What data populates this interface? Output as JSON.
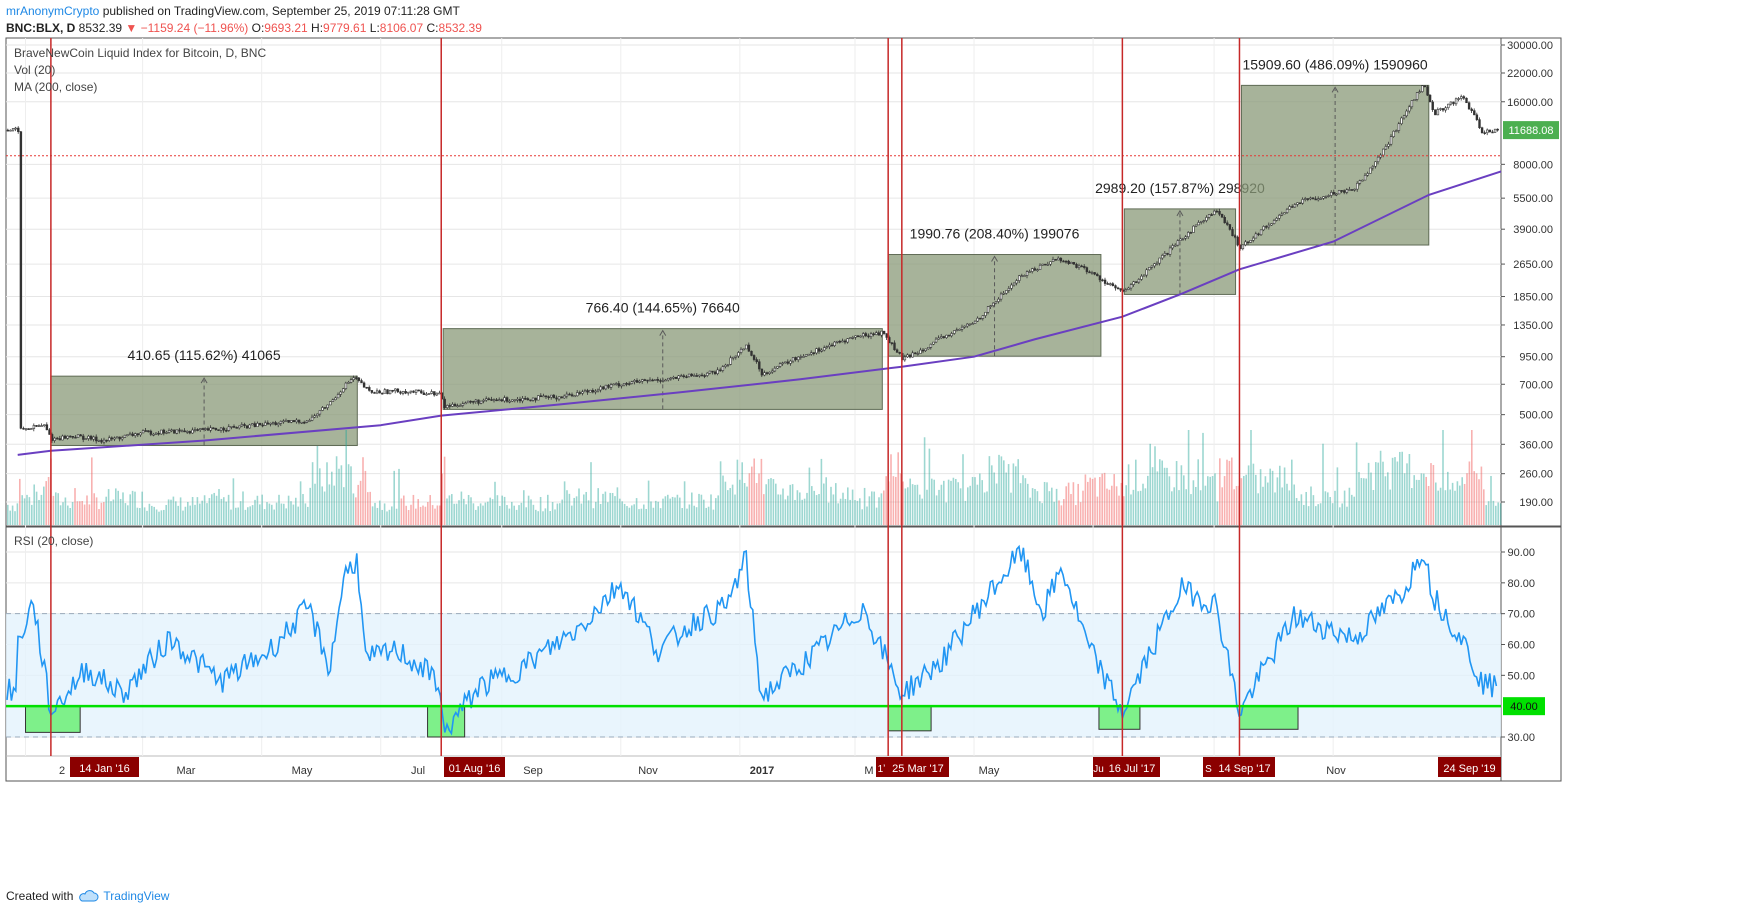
{
  "header": {
    "author": "mrAnonymCrypto",
    "published_text": "published on TradingView.com, September 25, 2019 07:11:28 GMT",
    "symbol": "BNC:BLX, D",
    "last": "8532.39",
    "change": "−1159.24 (−11.96%)",
    "open_label": "O:",
    "open": "9693.21",
    "high_label": "H:",
    "high": "9779.61",
    "low_label": "L:",
    "low": "8106.07",
    "close_label": "C:",
    "close": "8532.39"
  },
  "legends": {
    "price_title": "BraveNewCoin Liquid Index for Bitcoin, D, BNC",
    "vol": "Vol (20)",
    "ma": "MA (200, close)",
    "rsi": "RSI (20, close)"
  },
  "footer": {
    "created_with": "Created with",
    "brand": "TradingView"
  },
  "colors": {
    "up": "#26a69a",
    "down": "#ef5350",
    "ma": "#6a3fc1",
    "rsi": "#2196f3",
    "box": "#8a9a78",
    "vline": "#c62828",
    "green_line": "#00e000",
    "green_box": "#7ef08a",
    "badge": "#8b0000",
    "last_price": "#4caf50"
  },
  "chart_data": [
    {
      "type": "line",
      "title": "BraveNewCoin Liquid Index for Bitcoin, D, BNC",
      "scale": "log",
      "price_ticks": [
        "30000.00",
        "22000.00",
        "16000.00",
        "11688.08",
        "8000.00",
        "5500.00",
        "3900.00",
        "2650.00",
        "1850.00",
        "1350.00",
        "950.00",
        "700.00",
        "500.00",
        "360.00",
        "260.00",
        "190.00"
      ],
      "last_price_badge": "11688.08",
      "x_ticks": [
        "2",
        "Mar",
        "May",
        "Jul",
        "Sep",
        "Nov",
        "2017",
        "M",
        "May",
        "Jul",
        "S",
        "Nov"
      ],
      "price_path": [
        [
          "2015-12-28",
          420
        ],
        [
          "2016-01-10",
          445
        ],
        [
          "2016-01-14",
          382
        ],
        [
          "2016-01-25",
          395
        ],
        [
          "2016-02-10",
          375
        ],
        [
          "2016-03-01",
          410
        ],
        [
          "2016-04-01",
          420
        ],
        [
          "2016-05-01",
          448
        ],
        [
          "2016-05-25",
          470
        ],
        [
          "2016-06-05",
          575
        ],
        [
          "2016-06-12",
          690
        ],
        [
          "2016-06-17",
          755
        ],
        [
          "2016-06-25",
          640
        ],
        [
          "2016-07-10",
          650
        ],
        [
          "2016-07-31",
          630
        ],
        [
          "2016-08-02",
          545
        ],
        [
          "2016-08-15",
          575
        ],
        [
          "2016-09-01",
          590
        ],
        [
          "2016-10-01",
          610
        ],
        [
          "2016-11-01",
          705
        ],
        [
          "2016-12-01",
          755
        ],
        [
          "2016-12-20",
          800
        ],
        [
          "2017-01-04",
          1080
        ],
        [
          "2017-01-12",
          785
        ],
        [
          "2017-02-01",
          960
        ],
        [
          "2017-03-01",
          1190
        ],
        [
          "2017-03-15",
          1240
        ],
        [
          "2017-03-25",
          920
        ],
        [
          "2017-04-15",
          1180
        ],
        [
          "2017-05-01",
          1400
        ],
        [
          "2017-05-25",
          2350
        ],
        [
          "2017-06-12",
          2820
        ],
        [
          "2017-06-25",
          2550
        ],
        [
          "2017-07-16",
          1930
        ],
        [
          "2017-08-05",
          2850
        ],
        [
          "2017-08-25",
          4300
        ],
        [
          "2017-09-02",
          4800
        ],
        [
          "2017-09-14",
          3200
        ],
        [
          "2017-10-12",
          5200
        ],
        [
          "2017-11-12",
          6200
        ],
        [
          "2017-11-28",
          9800
        ],
        [
          "2017-12-08",
          14500
        ],
        [
          "2017-12-17",
          19500
        ],
        [
          "2017-12-22",
          14000
        ],
        [
          "2018-01-06",
          17000
        ],
        [
          "2018-01-16",
          11500
        ],
        [
          "2018-01-26",
          11688
        ]
      ],
      "ma200_path": [
        [
          "2015-12-28",
          320
        ],
        [
          "2016-01-14",
          335
        ],
        [
          "2016-04-01",
          375
        ],
        [
          "2016-07-01",
          445
        ],
        [
          "2016-08-01",
          495
        ],
        [
          "2016-10-01",
          560
        ],
        [
          "2016-12-01",
          640
        ],
        [
          "2017-02-01",
          740
        ],
        [
          "2017-03-25",
          850
        ],
        [
          "2017-05-01",
          950
        ],
        [
          "2017-06-01",
          1150
        ],
        [
          "2017-07-16",
          1480
        ],
        [
          "2017-08-15",
          1900
        ],
        [
          "2017-09-14",
          2500
        ],
        [
          "2017-11-01",
          3400
        ],
        [
          "2017-12-20",
          5700
        ],
        [
          "2018-01-26",
          7400
        ]
      ],
      "red_dotted_level": 8800,
      "measure_boxes": [
        {
          "label": "410.65 (115.62%) 41065",
          "start": "2016-01-14",
          "end": "2016-06-19",
          "low": 355.2,
          "high": 765.8
        },
        {
          "label": "766.40 (144.65%) 76640",
          "start": "2016-08-02",
          "end": "2017-03-15",
          "low": 529.9,
          "high": 1296.3
        },
        {
          "label": "1990.76 (208.40%) 199076",
          "start": "2017-03-18",
          "end": "2017-07-05",
          "low": 955.3,
          "high": 2946.1
        },
        {
          "label": "2989.20 (157.87%) 298920",
          "start": "2017-07-17",
          "end": "2017-09-12",
          "low": 1893.5,
          "high": 4882.7
        },
        {
          "label": "15909.60 (486.09%) 1590960",
          "start": "2017-09-15",
          "end": "2017-12-20",
          "low": 3273.0,
          "high": 19182.6
        }
      ],
      "vertical_markers": [
        "2016-01-14",
        "2016-08-01",
        "2017-03-18",
        "2017-03-25",
        "2017-07-16",
        "2017-09-14"
      ]
    },
    {
      "type": "line",
      "title": "RSI (20, close)",
      "ylim": [
        25,
        95
      ],
      "y_ticks": [
        "90.00",
        "80.00",
        "70.00",
        "60.00",
        "50.00",
        "40.00",
        "30.00"
      ],
      "band": [
        30,
        70
      ],
      "green_level": 40,
      "green_level_label": "40.00",
      "rsi_path": [
        [
          "2015-12-28",
          60
        ],
        [
          "2016-01-05",
          74
        ],
        [
          "2016-01-14",
          38
        ],
        [
          "2016-02-01",
          52
        ],
        [
          "2016-02-20",
          44
        ],
        [
          "2016-03-15",
          62
        ],
        [
          "2016-04-10",
          48
        ],
        [
          "2016-05-05",
          58
        ],
        [
          "2016-05-25",
          72
        ],
        [
          "2016-06-05",
          52
        ],
        [
          "2016-06-12",
          82
        ],
        [
          "2016-06-19",
          88
        ],
        [
          "2016-06-23",
          55
        ],
        [
          "2016-07-10",
          58
        ],
        [
          "2016-07-31",
          48
        ],
        [
          "2016-08-02",
          31
        ],
        [
          "2016-08-20",
          46
        ],
        [
          "2016-09-10",
          52
        ],
        [
          "2016-10-10",
          65
        ],
        [
          "2016-11-01",
          80
        ],
        [
          "2016-11-20",
          58
        ],
        [
          "2016-12-10",
          68
        ],
        [
          "2016-12-25",
          72
        ],
        [
          "2017-01-04",
          88
        ],
        [
          "2017-01-12",
          43
        ],
        [
          "2017-02-10",
          58
        ],
        [
          "2017-03-05",
          72
        ],
        [
          "2017-03-25",
          44
        ],
        [
          "2017-04-15",
          55
        ],
        [
          "2017-05-01",
          70
        ],
        [
          "2017-05-25",
          90
        ],
        [
          "2017-06-05",
          70
        ],
        [
          "2017-06-15",
          85
        ],
        [
          "2017-06-28",
          60
        ],
        [
          "2017-07-16",
          38
        ],
        [
          "2017-08-05",
          65
        ],
        [
          "2017-08-15",
          78
        ],
        [
          "2017-09-02",
          73
        ],
        [
          "2017-09-14",
          38
        ],
        [
          "2017-10-12",
          69
        ],
        [
          "2017-11-12",
          62
        ],
        [
          "2017-11-28",
          72
        ],
        [
          "2017-12-08",
          78
        ],
        [
          "2017-12-17",
          92
        ],
        [
          "2017-12-22",
          76
        ],
        [
          "2018-01-06",
          62
        ],
        [
          "2018-01-16",
          48
        ],
        [
          "2018-01-26",
          45
        ]
      ],
      "green_boxes": [
        {
          "start": "2016-01-01",
          "end": "2016-01-29",
          "low": 31.5
        },
        {
          "start": "2016-07-25",
          "end": "2016-08-13",
          "low": 30.0
        },
        {
          "start": "2017-03-18",
          "end": "2017-04-09",
          "low": 32.0
        },
        {
          "start": "2017-07-04",
          "end": "2017-07-25",
          "low": 32.5
        },
        {
          "start": "2017-09-14",
          "end": "2017-10-14",
          "low": 32.5
        }
      ]
    }
  ],
  "date_badges": [
    "14 Jan '16",
    "01 Aug '16",
    "25 Mar '17",
    "16 Jul '17",
    "14 Sep '17",
    "24 Sep '19"
  ],
  "date_badge_prefixes": [
    "1ʼ",
    "Ju",
    "S"
  ]
}
